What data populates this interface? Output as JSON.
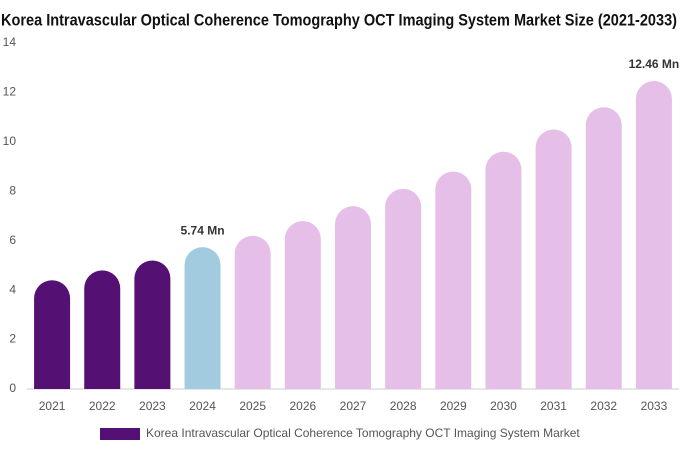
{
  "chart_data": {
    "type": "bar",
    "title": "Korea Intravascular Optical Coherence Tomography OCT Imaging System Market Size (2021-2033)",
    "categories": [
      "2021",
      "2022",
      "2023",
      "2024",
      "2025",
      "2026",
      "2027",
      "2028",
      "2029",
      "2030",
      "2031",
      "2032",
      "2033"
    ],
    "series": [
      {
        "name": "Korea Intravascular Optical Coherence Tomography OCT Imaging System Market",
        "color": "#541173",
        "values": [
          4.4,
          4.8,
          5.2,
          5.74,
          6.2,
          6.8,
          7.4,
          8.1,
          8.8,
          9.6,
          10.5,
          11.4,
          12.46
        ],
        "value_labels": [
          null,
          null,
          null,
          "5.74 Mn",
          null,
          null,
          null,
          null,
          null,
          null,
          null,
          null,
          "12.46 Mn"
        ],
        "colors": [
          "#541173",
          "#541173",
          "#541173",
          "#a3cbe0",
          "#e6bfe9",
          "#e6bfe9",
          "#e6bfe9",
          "#e6bfe9",
          "#e6bfe9",
          "#e6bfe9",
          "#e6bfe9",
          "#e6bfe9",
          "#e6bfe9"
        ]
      }
    ],
    "ylim": [
      0,
      14
    ],
    "yticks": [
      0,
      2,
      4,
      6,
      8,
      10,
      12,
      14
    ],
    "grid": false
  }
}
